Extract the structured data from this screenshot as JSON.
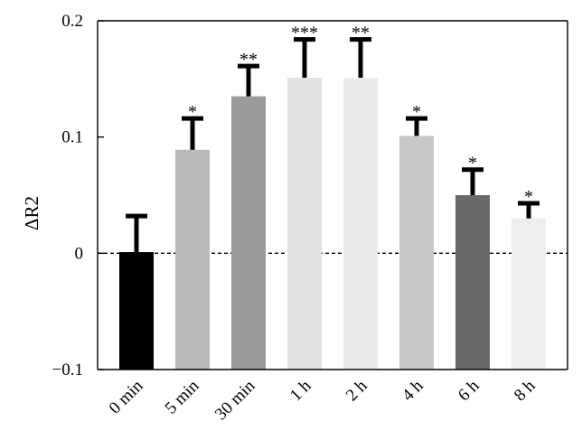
{
  "chart_data": {
    "type": "bar",
    "ylabel": "ΔR2",
    "xlabel": "",
    "ylim": [
      -0.1,
      0.2
    ],
    "yticks": [
      {
        "value": -0.1,
        "label": "−0.1"
      },
      {
        "value": 0,
        "label": "0"
      },
      {
        "value": 0.1,
        "label": "0.1"
      },
      {
        "value": 0.2,
        "label": "0.2"
      }
    ],
    "categories": [
      "0 min",
      "5 min",
      "30 min",
      "1 h",
      "2 h",
      "4 h",
      "6 h",
      "8 h"
    ],
    "values": [
      0.001,
      0.089,
      0.135,
      0.151,
      0.151,
      0.101,
      0.05,
      0.03
    ],
    "error_upper": [
      0.031,
      0.027,
      0.026,
      0.033,
      0.033,
      0.015,
      0.022,
      0.013
    ],
    "significance": [
      "",
      "*",
      "**",
      "***",
      "**",
      "*",
      "*",
      "*"
    ],
    "bar_colors": [
      "#000000",
      "#b8bab8",
      "#9a9a9a",
      "#e2e2e2",
      "#ebebeb",
      "#c8c8c8",
      "#696969",
      "#eeeeee"
    ],
    "reference_line": {
      "value": 0,
      "style": "dashed"
    },
    "grid": false,
    "legend": "none"
  }
}
